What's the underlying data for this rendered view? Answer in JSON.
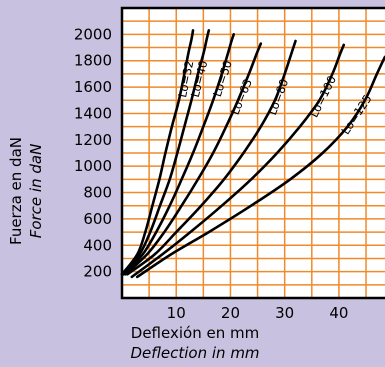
{
  "chart_data": {
    "type": "line",
    "title": "",
    "ylabel": {
      "es": "Fuerza en daN",
      "en": "Force in daN"
    },
    "xlabel": {
      "es": "Deflexión en mm",
      "en": "Deflection in mm"
    },
    "x_ticks": [
      10,
      20,
      30,
      40
    ],
    "y_ticks": [
      200,
      400,
      600,
      800,
      1000,
      1200,
      1400,
      1600,
      1800,
      2000
    ],
    "xlim": [
      0,
      48.5
    ],
    "ylim": [
      0,
      2200
    ],
    "grid": true,
    "colors": {
      "background": "#c9c1e0",
      "plot": "#ffffff",
      "grid": "#f08a2a",
      "line": "#000000",
      "frame": "#000000"
    },
    "series": [
      {
        "name": "Lo=32",
        "label": "Lo=32",
        "x": [
          0.0,
          2.8,
          4.3,
          5.6,
          6.9,
          8.0,
          9.2,
          10.5,
          11.5,
          12.2,
          12.8,
          13.1
        ],
        "y": [
          180,
          330,
          500,
          700,
          900,
          1100,
          1300,
          1500,
          1700,
          1850,
          1960,
          2030
        ]
      },
      {
        "name": "Lo=40",
        "label": "Lo=40",
        "x": [
          0.0,
          3.2,
          5.2,
          7.0,
          8.8,
          10.2,
          11.5,
          12.8,
          14.0,
          15.0,
          15.6,
          16.0
        ],
        "y": [
          180,
          330,
          500,
          700,
          900,
          1100,
          1300,
          1500,
          1700,
          1850,
          1960,
          2030
        ]
      },
      {
        "name": "Lo=50",
        "label": "Lo=50",
        "x": [
          0.3,
          3.8,
          6.3,
          8.8,
          11.0,
          13.1,
          15.0,
          16.8,
          18.4,
          19.5,
          20.2,
          20.6
        ],
        "y": [
          180,
          330,
          500,
          700,
          900,
          1100,
          1300,
          1500,
          1700,
          1850,
          1950,
          2000
        ]
      },
      {
        "name": "Lo=63",
        "label": "Lo=63",
        "x": [
          0.6,
          4.6,
          7.8,
          11.0,
          14.0,
          16.8,
          19.2,
          21.4,
          23.4,
          24.8,
          25.6
        ],
        "y": [
          180,
          330,
          500,
          700,
          900,
          1100,
          1300,
          1500,
          1700,
          1850,
          1930
        ]
      },
      {
        "name": "Lo=80",
        "label": "Lo=80",
        "x": [
          1.0,
          6.0,
          10.0,
          14.6,
          18.8,
          22.4,
          25.6,
          28.2,
          30.0,
          31.2,
          32.0
        ],
        "y": [
          180,
          330,
          500,
          700,
          900,
          1100,
          1300,
          1500,
          1700,
          1850,
          1950
        ]
      },
      {
        "name": "Lo=100",
        "label": "Lo=100",
        "x": [
          1.8,
          7.4,
          12.6,
          18.4,
          23.8,
          28.6,
          32.8,
          36.4,
          38.8,
          40.2,
          40.9
        ],
        "y": [
          160,
          330,
          500,
          700,
          900,
          1100,
          1300,
          1500,
          1700,
          1850,
          1920
        ]
      },
      {
        "name": "Lo=125",
        "label": "Lo=125",
        "x": [
          2.8,
          9.0,
          16.0,
          23.8,
          31.0,
          37.0,
          41.6,
          44.8,
          47.0,
          48.5
        ],
        "y": [
          160,
          330,
          500,
          700,
          900,
          1100,
          1300,
          1500,
          1700,
          1830
        ]
      }
    ]
  }
}
